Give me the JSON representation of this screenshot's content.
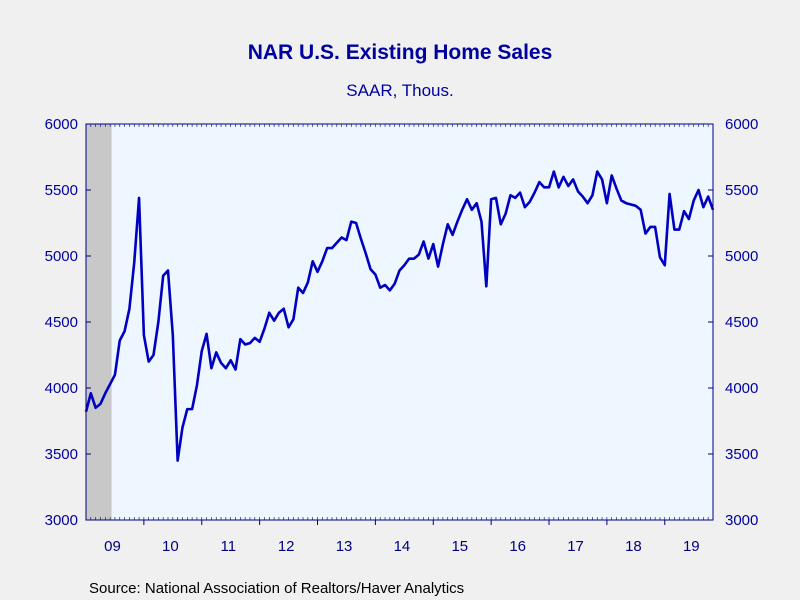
{
  "chart_data": {
    "type": "line",
    "title": "NAR U.S. Existing Home Sales",
    "subtitle": "SAAR, Thous.",
    "source": "Source:  National Association of Realtors/Haver Analytics",
    "ylim": [
      3000,
      6000
    ],
    "yticks": [
      "3000",
      "3500",
      "4000",
      "4500",
      "5000",
      "5500",
      "6000"
    ],
    "x_labels": [
      "09",
      "10",
      "11",
      "12",
      "13",
      "14",
      "15",
      "16",
      "17",
      "18",
      "19"
    ],
    "x_start": "2009-01",
    "recession": {
      "start": "2009-01",
      "end": "2009-06"
    },
    "colors": {
      "line": "#0000c0",
      "axis": "#000080",
      "plot_bg": "#eef6ff",
      "recession": "#c8c8c8"
    },
    "series": [
      {
        "name": "",
        "values": [
          3820,
          3960,
          3850,
          3880,
          3960,
          4030,
          4100,
          4360,
          4430,
          4600,
          4950,
          5440,
          4400,
          4200,
          4250,
          4500,
          4850,
          4890,
          4400,
          3450,
          3700,
          3840,
          3840,
          4020,
          4280,
          4410,
          4150,
          4270,
          4190,
          4150,
          4210,
          4140,
          4370,
          4330,
          4340,
          4380,
          4350,
          4450,
          4570,
          4510,
          4570,
          4600,
          4460,
          4520,
          4760,
          4720,
          4800,
          4960,
          4880,
          4960,
          5060,
          5060,
          5100,
          5140,
          5120,
          5260,
          5250,
          5130,
          5020,
          4900,
          4860,
          4760,
          4780,
          4740,
          4790,
          4890,
          4930,
          4980,
          4980,
          5010,
          5110,
          4980,
          5090,
          4920,
          5090,
          5240,
          5160,
          5260,
          5350,
          5430,
          5350,
          5400,
          5260,
          4770,
          5430,
          5440,
          5240,
          5320,
          5460,
          5440,
          5480,
          5370,
          5410,
          5480,
          5560,
          5520,
          5520,
          5640,
          5520,
          5600,
          5530,
          5580,
          5490,
          5450,
          5400,
          5460,
          5640,
          5580,
          5400,
          5610,
          5510,
          5420,
          5400,
          5390,
          5380,
          5350,
          5170,
          5220,
          5220,
          4990,
          4930,
          5470,
          5200,
          5200,
          5340,
          5280,
          5420,
          5500,
          5370,
          5450,
          5350
        ]
      }
    ]
  }
}
